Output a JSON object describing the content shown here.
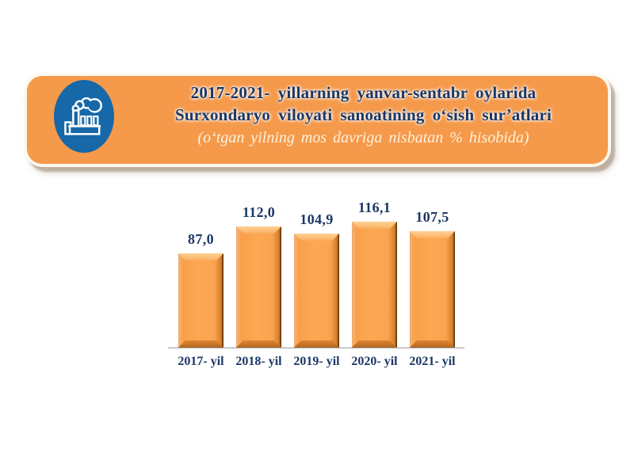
{
  "banner": {
    "title_line1": "2017-2021- yillarning yanvar-sentabr oylarida",
    "title_line2": "Surxondaryo viloyati sanoatining o‘sish sur’atlari",
    "subtitle": "(o‘tgan yilning mos davriga nisbatan % hisobida)",
    "icon": "factory-icon",
    "colors": {
      "banner_orange": "#F5994A",
      "border_cream": "#FDF8EE",
      "icon_blue": "#1668A8",
      "title_navy": "#1B3766",
      "subtitle_cream": "#FDF3DC"
    }
  },
  "chart_data": {
    "type": "bar",
    "categories": [
      "2017- yil",
      "2018- yil",
      "2019- yil",
      "2020- yil",
      "2021- yil"
    ],
    "values": [
      87.0,
      112.0,
      104.9,
      116.1,
      107.5
    ],
    "value_labels": [
      "87,0",
      "112,0",
      "104,9",
      "116,1",
      "107,5"
    ],
    "title": "2017-2021- yillarning yanvar-sentabr oylarida Surxondaryo viloyati sanoatining o‘sish sur’atlari",
    "xlabel": "",
    "ylabel": "",
    "unit_note": "(o‘tgan yilning mos davriga nisbatan % hisobida)",
    "ylim": [
      0,
      125
    ],
    "grid": false,
    "legend": false,
    "bar_color": "#FBA350",
    "label_color": "#1B3766"
  }
}
